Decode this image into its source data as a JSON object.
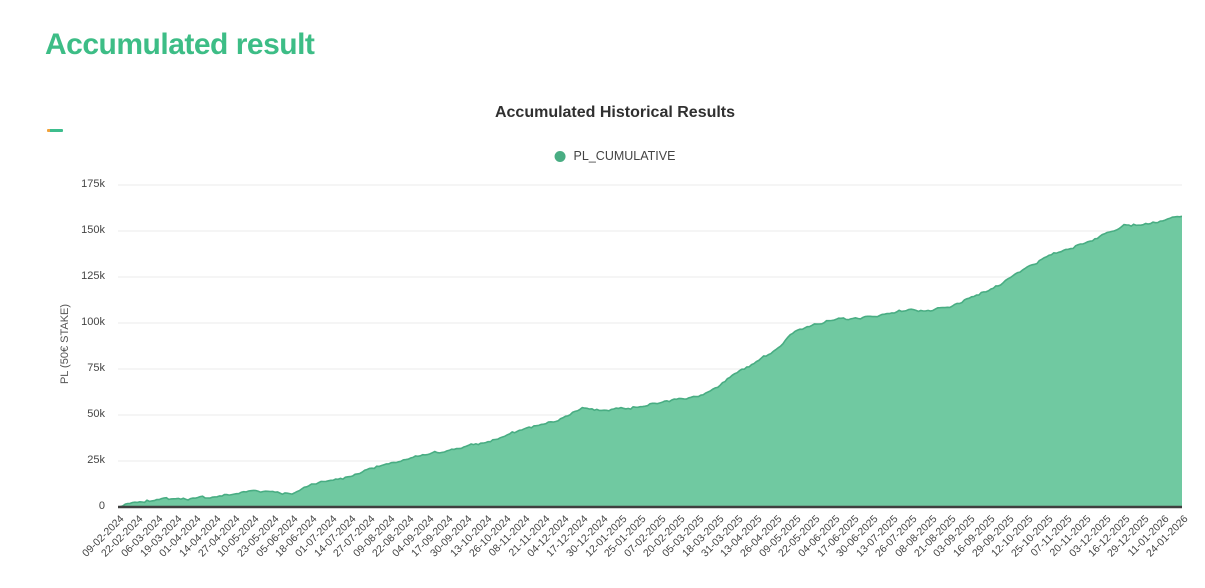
{
  "page": {
    "title": "Accumulated result",
    "accent_color": "#3dbd86",
    "mini_bar_colors": {
      "left": "#f0a33c",
      "right": "#3dbd8d"
    }
  },
  "chart": {
    "text_color": "#444444",
    "grid_color": "#ebebeb",
    "axis_line_color": "#3f3f3f",
    "y_axis": {
      "ticks": [
        {
          "label": "0",
          "value": 0
        },
        {
          "label": "25k",
          "value": 25000
        },
        {
          "label": "50k",
          "value": 50000
        },
        {
          "label": "75k",
          "value": 75000
        },
        {
          "label": "100k",
          "value": 100000
        },
        {
          "label": "125k",
          "value": 125000
        },
        {
          "label": "150k",
          "value": 150000
        },
        {
          "label": "175k",
          "value": 175000
        }
      ]
    }
  },
  "chart_data": {
    "type": "area",
    "title": "Accumulated Historical Results",
    "ylabel": "PL (50€ STAKE)",
    "xlabel": "",
    "ylim": [
      0,
      175000
    ],
    "grid": "horizontal",
    "legend_position": "top-center",
    "x": [
      "09-02-2024",
      "22-02-2024",
      "06-03-2024",
      "19-03-2024",
      "01-04-2024",
      "14-04-2024",
      "27-04-2024",
      "10-05-2024",
      "23-05-2024",
      "05-06-2024",
      "18-06-2024",
      "01-07-2024",
      "14-07-2024",
      "27-07-2024",
      "09-08-2024",
      "22-08-2024",
      "04-09-2024",
      "17-09-2024",
      "30-09-2024",
      "13-10-2024",
      "26-10-2024",
      "08-11-2024",
      "21-11-2024",
      "04-12-2024",
      "17-12-2024",
      "30-12-2024",
      "12-01-2025",
      "25-01-2025",
      "07-02-2025",
      "20-02-2025",
      "05-03-2025",
      "18-03-2025",
      "31-03-2025",
      "13-04-2025",
      "26-04-2025",
      "09-05-2025",
      "22-05-2025",
      "04-06-2025",
      "17-06-2025",
      "30-06-2025",
      "13-07-2025",
      "26-07-2025",
      "08-08-2025",
      "21-08-2025",
      "03-09-2025",
      "16-09-2025",
      "29-09-2025",
      "12-10-2025",
      "25-10-2025",
      "07-11-2025",
      "20-11-2025",
      "03-12-2025",
      "16-12-2025",
      "29-12-2025",
      "11-01-2026",
      "24-01-2026"
    ],
    "series": [
      {
        "name": "PL_CUMULATIVE",
        "color": "#49ad83",
        "fill_color": "#70c9a1",
        "values": [
          0,
          2500,
          4000,
          4500,
          4800,
          5500,
          7000,
          9000,
          8500,
          7000,
          12500,
          14500,
          16500,
          21000,
          23500,
          26000,
          28500,
          30500,
          33000,
          35000,
          38500,
          42500,
          45000,
          48500,
          54000,
          52500,
          54000,
          54500,
          56500,
          59000,
          60000,
          65000,
          73000,
          79000,
          85500,
          95500,
          99500,
          101500,
          102500,
          103500,
          105500,
          107500,
          106500,
          108500,
          113500,
          117500,
          124000,
          130500,
          136000,
          140000,
          143500,
          148500,
          153500,
          153500,
          155500,
          158000
        ]
      }
    ]
  }
}
